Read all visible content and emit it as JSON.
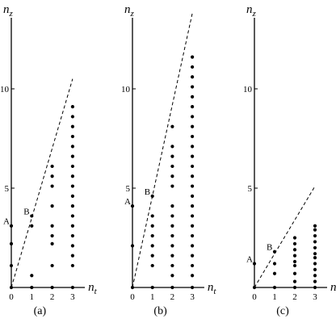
{
  "chart_data": [
    {
      "type": "scatter",
      "panel_label": "(a)",
      "xlabel": "n_t",
      "ylabel": "n_z",
      "x_ticks": [
        0,
        1,
        2,
        3
      ],
      "y_ticks": [
        5,
        10
      ],
      "xlim": [
        0,
        3.6
      ],
      "ylim": [
        0,
        14
      ],
      "points": [
        {
          "x": 0,
          "y": 0
        },
        {
          "x": 0,
          "y": 1.1
        },
        {
          "x": 0,
          "y": 2.2
        },
        {
          "x": 0,
          "y": 3.1
        },
        {
          "x": 1,
          "y": 0
        },
        {
          "x": 1,
          "y": 0.6
        },
        {
          "x": 1,
          "y": 3.1
        },
        {
          "x": 1,
          "y": 3.6
        },
        {
          "x": 2,
          "y": 0
        },
        {
          "x": 2,
          "y": 1.1
        },
        {
          "x": 2,
          "y": 2.2
        },
        {
          "x": 2,
          "y": 2.6
        },
        {
          "x": 2,
          "y": 3.1
        },
        {
          "x": 2,
          "y": 4.1
        },
        {
          "x": 2,
          "y": 5.1
        },
        {
          "x": 2,
          "y": 5.6
        },
        {
          "x": 2,
          "y": 6.1
        },
        {
          "x": 3,
          "y": 0
        },
        {
          "x": 3,
          "y": 1.1
        },
        {
          "x": 3,
          "y": 1.6
        },
        {
          "x": 3,
          "y": 2.1
        },
        {
          "x": 3,
          "y": 2.6
        },
        {
          "x": 3,
          "y": 3.1
        },
        {
          "x": 3,
          "y": 3.6
        },
        {
          "x": 3,
          "y": 4.1
        },
        {
          "x": 3,
          "y": 4.6
        },
        {
          "x": 3,
          "y": 5.1
        },
        {
          "x": 3,
          "y": 5.6
        },
        {
          "x": 3,
          "y": 6.1
        },
        {
          "x": 3,
          "y": 6.6
        },
        {
          "x": 3,
          "y": 7.1
        },
        {
          "x": 3,
          "y": 7.6
        },
        {
          "x": 3,
          "y": 8.1
        },
        {
          "x": 3,
          "y": 8.6
        },
        {
          "x": 3,
          "y": 9.1
        }
      ],
      "dashed_line": {
        "from": [
          0,
          0
        ],
        "to": [
          3,
          10.5
        ]
      },
      "annotations": [
        {
          "text": "A",
          "x": 0,
          "y": 3.1
        },
        {
          "text": "B",
          "x": 1,
          "y": 3.6
        }
      ]
    },
    {
      "type": "scatter",
      "panel_label": "(b)",
      "xlabel": "n_t",
      "ylabel": "n_z",
      "x_ticks": [
        0,
        1,
        2,
        3
      ],
      "y_ticks": [
        5,
        10
      ],
      "xlim": [
        0,
        3.6
      ],
      "ylim": [
        0,
        14
      ],
      "points": [
        {
          "x": 0,
          "y": 0
        },
        {
          "x": 0,
          "y": 2.1
        },
        {
          "x": 0,
          "y": 4.1
        },
        {
          "x": 1,
          "y": 0
        },
        {
          "x": 1,
          "y": 1.1
        },
        {
          "x": 1,
          "y": 1.6
        },
        {
          "x": 1,
          "y": 2.1
        },
        {
          "x": 1,
          "y": 2.6
        },
        {
          "x": 1,
          "y": 3.1
        },
        {
          "x": 1,
          "y": 3.6
        },
        {
          "x": 1,
          "y": 4.6
        },
        {
          "x": 2,
          "y": 0
        },
        {
          "x": 2,
          "y": 0.6
        },
        {
          "x": 2,
          "y": 1.1
        },
        {
          "x": 2,
          "y": 1.6
        },
        {
          "x": 2,
          "y": 2.1
        },
        {
          "x": 2,
          "y": 2.6
        },
        {
          "x": 2,
          "y": 3.1
        },
        {
          "x": 2,
          "y": 3.6
        },
        {
          "x": 2,
          "y": 4.1
        },
        {
          "x": 2,
          "y": 5.1
        },
        {
          "x": 2,
          "y": 5.6
        },
        {
          "x": 2,
          "y": 6.1
        },
        {
          "x": 2,
          "y": 6.6
        },
        {
          "x": 2,
          "y": 7.1
        },
        {
          "x": 2,
          "y": 8.1
        },
        {
          "x": 3,
          "y": 0
        },
        {
          "x": 3,
          "y": 0.6
        },
        {
          "x": 3,
          "y": 1.1
        },
        {
          "x": 3,
          "y": 1.6
        },
        {
          "x": 3,
          "y": 2.1
        },
        {
          "x": 3,
          "y": 2.6
        },
        {
          "x": 3,
          "y": 3.1
        },
        {
          "x": 3,
          "y": 3.6
        },
        {
          "x": 3,
          "y": 4.1
        },
        {
          "x": 3,
          "y": 4.6
        },
        {
          "x": 3,
          "y": 5.1
        },
        {
          "x": 3,
          "y": 5.6
        },
        {
          "x": 3,
          "y": 6.1
        },
        {
          "x": 3,
          "y": 6.6
        },
        {
          "x": 3,
          "y": 7.1
        },
        {
          "x": 3,
          "y": 7.6
        },
        {
          "x": 3,
          "y": 8.1
        },
        {
          "x": 3,
          "y": 8.6
        },
        {
          "x": 3,
          "y": 9.1
        },
        {
          "x": 3,
          "y": 9.6
        },
        {
          "x": 3,
          "y": 10.1
        },
        {
          "x": 3,
          "y": 10.6
        },
        {
          "x": 3,
          "y": 11.1
        },
        {
          "x": 3,
          "y": 11.6
        }
      ],
      "dashed_line": {
        "from": [
          0,
          0
        ],
        "to": [
          3,
          13.8
        ]
      },
      "annotations": [
        {
          "text": "A",
          "x": 0,
          "y": 4.1
        },
        {
          "text": "B",
          "x": 1,
          "y": 4.6
        }
      ]
    },
    {
      "type": "scatter",
      "panel_label": "(c)",
      "xlabel": "n_t",
      "ylabel": "n_z",
      "x_ticks": [
        0,
        1,
        2,
        3
      ],
      "y_ticks": [
        5,
        10
      ],
      "xlim": [
        0,
        3.6
      ],
      "ylim": [
        0,
        14
      ],
      "points": [
        {
          "x": 0,
          "y": 0
        },
        {
          "x": 0,
          "y": 1.2
        },
        {
          "x": 1,
          "y": 0
        },
        {
          "x": 1,
          "y": 0.7
        },
        {
          "x": 1,
          "y": 1.2
        },
        {
          "x": 1,
          "y": 1.8
        },
        {
          "x": 2,
          "y": 0
        },
        {
          "x": 2,
          "y": 0.3
        },
        {
          "x": 2,
          "y": 0.7
        },
        {
          "x": 2,
          "y": 1.1
        },
        {
          "x": 2,
          "y": 1.3
        },
        {
          "x": 2,
          "y": 1.6
        },
        {
          "x": 2,
          "y": 1.9
        },
        {
          "x": 2,
          "y": 2.2
        },
        {
          "x": 2,
          "y": 2.5
        },
        {
          "x": 3,
          "y": 0
        },
        {
          "x": 3,
          "y": 0.3
        },
        {
          "x": 3,
          "y": 0.6
        },
        {
          "x": 3,
          "y": 0.9
        },
        {
          "x": 3,
          "y": 1.2
        },
        {
          "x": 3,
          "y": 1.5
        },
        {
          "x": 3,
          "y": 1.7
        },
        {
          "x": 3,
          "y": 2.0
        },
        {
          "x": 3,
          "y": 2.3
        },
        {
          "x": 3,
          "y": 2.6
        },
        {
          "x": 3,
          "y": 2.9
        },
        {
          "x": 3,
          "y": 3.1
        }
      ],
      "dashed_line": {
        "from": [
          0,
          0
        ],
        "to": [
          3,
          5.1
        ]
      },
      "annotations": [
        {
          "text": "A",
          "x": 0,
          "y": 1.2
        },
        {
          "text": "B",
          "x": 1,
          "y": 1.8
        }
      ]
    }
  ]
}
